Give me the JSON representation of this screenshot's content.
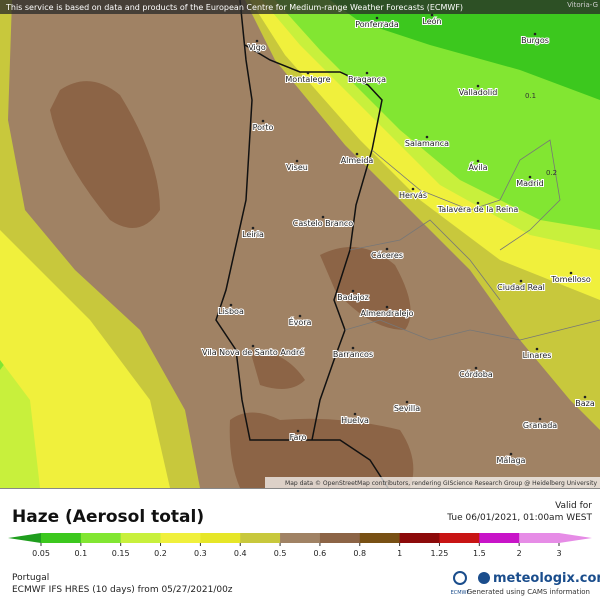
{
  "banner": "This service is based on data and products of the European Centre for Medium-range Weather Forecasts (ECMWF)",
  "map": {
    "corner_label": "Vitoria-G",
    "cities": [
      "Ponferrada",
      "León",
      "Burgos",
      "Vigo",
      "Montalegre",
      "Bragança",
      "Valladolid",
      "Porto",
      "Salamanca",
      "Viseu",
      "Almeida",
      "Ávila",
      "Madrid",
      "Hervás",
      "Talavera de la Reina",
      "Castelo Branco",
      "Cáceres",
      "Leiria",
      "Ciudad Real",
      "Tomelloso",
      "Badajoz",
      "Lisboa",
      "Évora",
      "Almendralejo",
      "Vila Nova de Santo André",
      "Barrancos",
      "Linares",
      "Córdoba",
      "Sevilla",
      "Baza",
      "Huelva",
      "Granada",
      "Faro",
      "Málaga"
    ],
    "contour_labels": [
      "0.1",
      "0.2"
    ],
    "attribution": "Map data © OpenStreetMap contributors, rendering GIScience Research Group @ Heidelberg University"
  },
  "header": {
    "title": "Haze (Aerosol total)",
    "valid_label": "Valid for",
    "valid_time": "Tue 06/01/2021, 01:00am WEST"
  },
  "legend": {
    "ticks": [
      "0.05",
      "0.1",
      "0.15",
      "0.2",
      "0.3",
      "0.4",
      "0.5",
      "0.6",
      "0.8",
      "1",
      "1.25",
      "1.5",
      "2",
      "3"
    ],
    "colors": [
      "#1f9e1e",
      "#3cc81e",
      "#82e632",
      "#c8f03c",
      "#f0f03c",
      "#e6e628",
      "#c8c83c",
      "#a08264",
      "#8c6446",
      "#785014",
      "#8c0a0a",
      "#c81414",
      "#c814c8",
      "#e68ce6"
    ]
  },
  "footer": {
    "region": "Portugal",
    "model": "ECMWF IFS HRES (10 days) from 05/27/2021/00z",
    "logo": "ECMWF",
    "brand": "meteologix.com",
    "credit": "Generated using CAMS information"
  }
}
